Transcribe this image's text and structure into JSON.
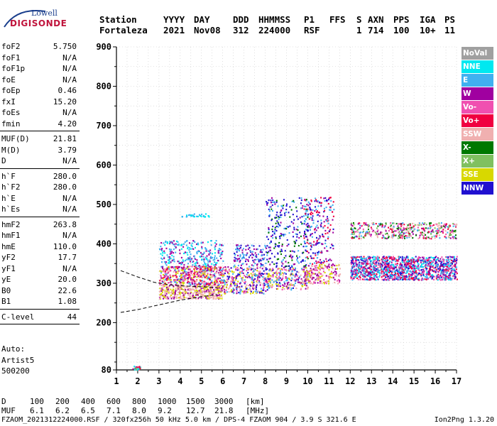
{
  "logo": {
    "line1": "Lowell",
    "line2": "DIGISONDE"
  },
  "header": {
    "row1": [
      "Station",
      "YYYY",
      "DAY",
      "DDD",
      "HHMMSS",
      "P1",
      "FFS",
      "S",
      "AXN",
      "PPS",
      "IGA",
      "PS"
    ],
    "row2": [
      "Fortaleza",
      "2021",
      "Nov08",
      "312",
      "224000",
      "RSF",
      "",
      "1",
      "714",
      "100",
      "10+",
      "11"
    ]
  },
  "params": [
    {
      "label": "foF2",
      "value": "5.750"
    },
    {
      "label": "foF1",
      "value": "N/A"
    },
    {
      "label": "foF1p",
      "value": "N/A"
    },
    {
      "label": "foE",
      "value": "N/A"
    },
    {
      "label": "foEp",
      "value": "0.46"
    },
    {
      "label": "fxI",
      "value": "15.20"
    },
    {
      "label": "foEs",
      "value": "N/A"
    },
    {
      "label": "fmin",
      "value": "4.20"
    },
    {
      "divider": true
    },
    {
      "label": "MUF(D)",
      "value": "21.81"
    },
    {
      "label": "M(D)",
      "value": "3.79"
    },
    {
      "label": "D",
      "value": "N/A"
    },
    {
      "divider": true
    },
    {
      "label": "h`F",
      "value": "280.0"
    },
    {
      "label": "h`F2",
      "value": "280.0"
    },
    {
      "label": "h`E",
      "value": "N/A"
    },
    {
      "label": "h`Es",
      "value": "N/A"
    },
    {
      "divider": true
    },
    {
      "label": "hmF2",
      "value": "263.8"
    },
    {
      "label": "hmF1",
      "value": "N/A"
    },
    {
      "label": "hmE",
      "value": "110.0"
    },
    {
      "label": "yF2",
      "value": "17.7"
    },
    {
      "label": "yF1",
      "value": "N/A"
    },
    {
      "label": "yE",
      "value": "20.0"
    },
    {
      "label": "B0",
      "value": "22.6"
    },
    {
      "label": "B1",
      "value": "1.08"
    },
    {
      "divider": true
    },
    {
      "label": "C-level",
      "value": "44"
    },
    {
      "divider": true
    }
  ],
  "auto": {
    "line1": "Auto:",
    "line2": "Artist5",
    "line3": "500200"
  },
  "legend": [
    {
      "label": "NoVal",
      "color": "#a0a0a0"
    },
    {
      "label": "NNE",
      "color": "#00e8f0"
    },
    {
      "label": "E",
      "color": "#40b0f0"
    },
    {
      "label": "W",
      "color": "#a000a0"
    },
    {
      "label": "Vo-",
      "color": "#f050b0"
    },
    {
      "label": "Vo+",
      "color": "#f00040"
    },
    {
      "label": "SSW",
      "color": "#f0b0b0"
    },
    {
      "label": "X-",
      "color": "#007800"
    },
    {
      "label": "X+",
      "color": "#80c060"
    },
    {
      "label": "SSE",
      "color": "#d8d800"
    },
    {
      "label": "NNW",
      "color": "#2010d0"
    }
  ],
  "bottom": {
    "d_label": "D",
    "d_values": [
      "100",
      "200",
      "400",
      "600",
      "800",
      "1000",
      "1500",
      "3000",
      "[km]"
    ],
    "muf_label": "MUF",
    "muf_values": [
      "6.1",
      "6.2",
      "6.5",
      "7.1",
      "8.0",
      "9.2",
      "12.7",
      "21.8",
      "[MHz]"
    ]
  },
  "footer": {
    "left": "FZAOM_2021312224000.RSF / 320fx256h 50 kHz 5.0 km / DPS-4 FZAOM 904 / 3.9 S 321.6 E",
    "right": "Ion2Png 1.3.20"
  },
  "chart_data": {
    "type": "scatter",
    "xlim": [
      1,
      17
    ],
    "ylim": [
      80,
      900
    ],
    "xticks": [
      1,
      2,
      3,
      4,
      5,
      6,
      7,
      8,
      9,
      10,
      11,
      12,
      13,
      14,
      15,
      16,
      17
    ],
    "yticks": [
      80,
      200,
      300,
      400,
      500,
      600,
      700,
      800,
      900
    ],
    "grid": true,
    "xlabel": "",
    "ylabel": "",
    "clusters": [
      {
        "x": [
          1.75,
          2.1
        ],
        "y": [
          81,
          92
        ],
        "colors": [
          "#f00040",
          "#a000a0",
          "#00e8f0",
          "#80c060"
        ],
        "n": 25
      },
      {
        "x": [
          3.0,
          6.0
        ],
        "y": [
          262,
          298
        ],
        "colors": [
          "#f0b0b0",
          "#d8d800",
          "#f0b0b0",
          "#a000a0"
        ],
        "n": 420
      },
      {
        "x": [
          3.0,
          6.0
        ],
        "y": [
          298,
          345
        ],
        "colors": [
          "#a000a0",
          "#f050b0",
          "#f0b0b0",
          "#f00040",
          "#40b0f0",
          "#d8d800"
        ],
        "n": 520
      },
      {
        "x": [
          3.0,
          6.0
        ],
        "y": [
          345,
          410
        ],
        "colors": [
          "#40b0f0",
          "#00e8f0",
          "#40b0f0",
          "#a000a0"
        ],
        "n": 260
      },
      {
        "x": [
          4.0,
          5.4
        ],
        "y": [
          470,
          478
        ],
        "colors": [
          "#40b0f0",
          "#00e8f0"
        ],
        "n": 30
      },
      {
        "x": [
          6.0,
          8.0
        ],
        "y": [
          275,
          345
        ],
        "colors": [
          "#a000a0",
          "#f0b0b0",
          "#d8d800",
          "#f050b0",
          "#2010d0",
          "#40b0f0"
        ],
        "n": 320
      },
      {
        "x": [
          6.5,
          8.0
        ],
        "y": [
          345,
          400
        ],
        "colors": [
          "#2010d0",
          "#a000a0",
          "#40b0f0"
        ],
        "n": 120
      },
      {
        "x": [
          8.0,
          10.0
        ],
        "y": [
          285,
          340
        ],
        "colors": [
          "#d8d800",
          "#f0b0b0",
          "#a000a0",
          "#2010d0",
          "#40b0f0",
          "#f050b0"
        ],
        "n": 260
      },
      {
        "x": [
          8.0,
          10.0
        ],
        "y": [
          340,
          520
        ],
        "colors": [
          "#2010d0",
          "#2010d0",
          "#a000a0",
          "#40b0f0",
          "#007800"
        ],
        "n": 280
      },
      {
        "x": [
          9.8,
          11.5
        ],
        "y": [
          300,
          350
        ],
        "colors": [
          "#d8d800",
          "#f0b0b0",
          "#a000a0",
          "#f050b0"
        ],
        "n": 180
      },
      {
        "x": [
          9.8,
          11.2
        ],
        "y": [
          350,
          520
        ],
        "colors": [
          "#2010d0",
          "#a000a0",
          "#f00040",
          "#40b0f0"
        ],
        "n": 220
      },
      {
        "x": [
          12.0,
          17.0
        ],
        "y": [
          310,
          370
        ],
        "colors": [
          "#2010d0",
          "#40b0f0",
          "#a000a0",
          "#00e8f0",
          "#f050b0",
          "#f00040"
        ],
        "n": 1300
      },
      {
        "x": [
          12.0,
          17.0
        ],
        "y": [
          415,
          455
        ],
        "colors": [
          "#007800",
          "#80c060",
          "#f050b0",
          "#40b0f0",
          "#a000a0",
          "#f00040",
          "#f0b0b0"
        ],
        "n": 420
      }
    ],
    "profile_curve": {
      "x": [
        1.2,
        2.0,
        2.8,
        3.5,
        4.2,
        5.0,
        5.75
      ],
      "y": [
        332,
        316,
        302,
        296,
        293,
        291,
        289
      ]
    },
    "lower_curve": {
      "x": [
        1.2,
        2.0,
        3.0,
        4.0,
        5.0,
        5.75
      ],
      "y": [
        226,
        233,
        245,
        257,
        266,
        271
      ]
    }
  }
}
